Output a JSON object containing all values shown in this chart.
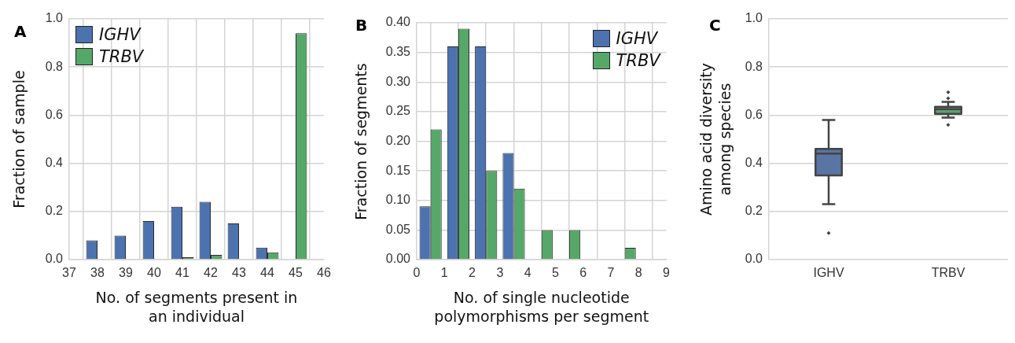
{
  "chart_data": [
    {
      "type": "bar",
      "title": "A",
      "x": [
        38,
        39,
        40,
        41,
        42,
        43,
        44,
        45
      ],
      "series": [
        {
          "name": "IGHV",
          "color": "#4c72b0",
          "values": [
            0.08,
            0.1,
            0.16,
            0.22,
            0.24,
            0.15,
            0.05,
            0
          ]
        },
        {
          "name": "TRBV",
          "color": "#55a868",
          "values": [
            0,
            0,
            0,
            0.01,
            0.02,
            0,
            0.03,
            0.94
          ]
        }
      ],
      "xlabel": "No. of segments present in an individual",
      "ylabel": "Fraction of sample",
      "xlim": [
        37,
        46
      ],
      "xticks": [
        37,
        38,
        39,
        40,
        41,
        42,
        43,
        44,
        45,
        46
      ],
      "ylim": [
        0,
        1
      ],
      "yticks": [
        {
          "value": 0,
          "label": "0.0"
        },
        {
          "value": 0.2,
          "label": "0.2"
        },
        {
          "value": 0.4,
          "label": "0.4"
        },
        {
          "value": 0.6,
          "label": "0.6"
        },
        {
          "value": 0.8,
          "label": "0.8"
        },
        {
          "value": 1,
          "label": "1.0"
        }
      ],
      "grid": true,
      "legend": "top left"
    },
    {
      "type": "histogram",
      "title": "B",
      "bins": [
        0,
        1,
        2,
        3,
        4,
        5,
        6,
        7,
        8,
        9
      ],
      "series": [
        {
          "name": "IGHV",
          "color": "#4c72b0",
          "values": [
            0.09,
            0.36,
            0.36,
            0.18,
            0,
            0,
            0,
            0,
            0
          ]
        },
        {
          "name": "TRBV",
          "color": "#55a868",
          "values": [
            0.22,
            0.39,
            0.15,
            0.12,
            0.05,
            0.05,
            0,
            0.02,
            0
          ]
        }
      ],
      "xlabel": "No. of single nucleotide polymorphisms per segment",
      "ylabel": "Fraction of segments",
      "xlim": [
        0,
        9
      ],
      "xticks": [
        0,
        1,
        2,
        3,
        4,
        5,
        6,
        7,
        8,
        9
      ],
      "ylim": [
        0,
        0.4
      ],
      "yticks": [
        {
          "value": 0,
          "label": "0.00"
        },
        {
          "value": 0.05,
          "label": "0.05"
        },
        {
          "value": 0.1,
          "label": "0.10"
        },
        {
          "value": 0.15,
          "label": "0.15"
        },
        {
          "value": 0.2,
          "label": "0.20"
        },
        {
          "value": 0.25,
          "label": "0.25"
        },
        {
          "value": 0.3,
          "label": "0.30"
        },
        {
          "value": 0.35,
          "label": "0.35"
        },
        {
          "value": 0.4,
          "label": "0.40"
        }
      ],
      "grid": true,
      "legend": "top right"
    },
    {
      "type": "box",
      "title": "C",
      "categories": [
        "IGHV",
        "TRBV"
      ],
      "boxes": [
        {
          "low": 0.23,
          "q1": 0.35,
          "median": 0.44,
          "q3": 0.46,
          "high": 0.58,
          "outliers": [
            0.11
          ]
        },
        {
          "low": 0.59,
          "q1": 0.605,
          "median": 0.625,
          "q3": 0.635,
          "high": 0.655,
          "outliers": [
            0.56,
            0.67,
            0.695
          ]
        }
      ],
      "colors": [
        "#5975a4",
        "#5f9e6e"
      ],
      "ylabel": "Amino acid diversity among species",
      "ylim": [
        0,
        1
      ],
      "yticks": [
        {
          "value": 0,
          "label": "0.0"
        },
        {
          "value": 0.2,
          "label": "0.2"
        },
        {
          "value": 0.4,
          "label": "0.4"
        },
        {
          "value": 0.6,
          "label": "0.6"
        },
        {
          "value": 0.8,
          "label": "0.8"
        },
        {
          "value": 1,
          "label": "1.0"
        }
      ],
      "grid": "y"
    }
  ]
}
